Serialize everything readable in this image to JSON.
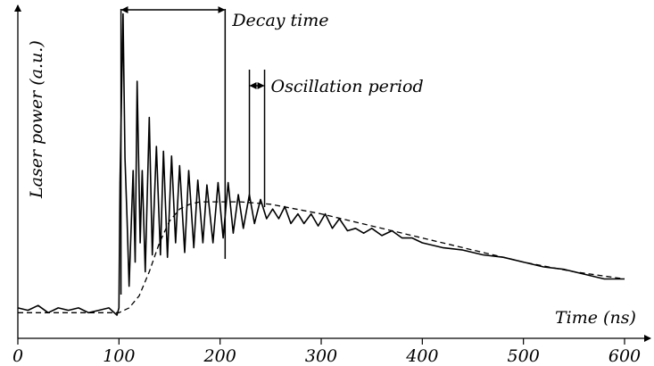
{
  "chart_data": {
    "type": "line",
    "xlabel": "Time (ns)",
    "ylabel": "Laser power (a.u.)",
    "xlim": [
      0,
      630
    ],
    "ylim": [
      -0.1,
      1.3
    ],
    "x_ticks": [
      0,
      100,
      200,
      300,
      400,
      500,
      600
    ],
    "x_tick_labels": [
      "0",
      "100",
      "200",
      "300",
      "400",
      "500",
      "600"
    ],
    "grid": false,
    "series": [
      {
        "style": "solid",
        "x": [
          0,
          10,
          20,
          30,
          40,
          50,
          60,
          70,
          80,
          90,
          98,
          100,
          101,
          104,
          106,
          108,
          110,
          114,
          116,
          118,
          121,
          123,
          126,
          130,
          133,
          137,
          141,
          144,
          148,
          152,
          156,
          160,
          165,
          169,
          174,
          178,
          183,
          187,
          193,
          198,
          203,
          208,
          213,
          218,
          223,
          229,
          234,
          240,
          246,
          252,
          258,
          264,
          270,
          277,
          283,
          290,
          297,
          304,
          311,
          318,
          326,
          334,
          342,
          350,
          360,
          370,
          380,
          390,
          400,
          420,
          440,
          460,
          480,
          500,
          520,
          540,
          560,
          580,
          600
        ],
        "y": [
          0.03,
          0.02,
          0.04,
          0.01,
          0.03,
          0.02,
          0.03,
          0.01,
          0.02,
          0.03,
          0.0,
          0.03,
          0.55,
          1.25,
          0.65,
          0.4,
          0.12,
          0.6,
          0.22,
          0.97,
          0.3,
          0.6,
          0.18,
          0.82,
          0.25,
          0.7,
          0.25,
          0.68,
          0.24,
          0.66,
          0.3,
          0.62,
          0.26,
          0.6,
          0.28,
          0.56,
          0.3,
          0.54,
          0.3,
          0.55,
          0.32,
          0.55,
          0.34,
          0.5,
          0.36,
          0.5,
          0.38,
          0.48,
          0.4,
          0.44,
          0.4,
          0.45,
          0.38,
          0.42,
          0.38,
          0.42,
          0.37,
          0.42,
          0.36,
          0.4,
          0.35,
          0.36,
          0.34,
          0.36,
          0.33,
          0.35,
          0.32,
          0.32,
          0.3,
          0.28,
          0.27,
          0.25,
          0.24,
          0.22,
          0.2,
          0.19,
          0.17,
          0.15,
          0.15
        ]
      },
      {
        "style": "dashed",
        "x": [
          0,
          100,
          110,
          120,
          130,
          140,
          150,
          160,
          170,
          180,
          200,
          220,
          250,
          300,
          350,
          400,
          450,
          500,
          550,
          600
        ],
        "y": [
          0.01,
          0.01,
          0.03,
          0.08,
          0.18,
          0.3,
          0.39,
          0.44,
          0.46,
          0.47,
          0.47,
          0.47,
          0.46,
          0.42,
          0.37,
          0.32,
          0.27,
          0.22,
          0.18,
          0.15
        ]
      }
    ],
    "annotations": [
      {
        "label": "Decay time",
        "x_start": 102,
        "x_end": 205
      },
      {
        "label": "Oscillation period",
        "x_start": 229,
        "x_end": 244
      }
    ]
  }
}
